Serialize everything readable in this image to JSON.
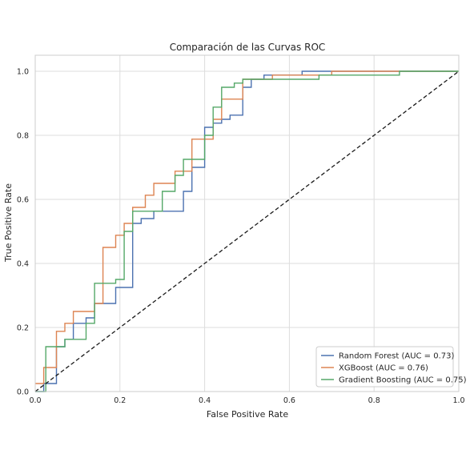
{
  "chart_data": {
    "type": "line",
    "title": "Comparación de las Curvas ROC",
    "xlabel": "False Positive Rate",
    "ylabel": "True Positive Rate",
    "xlim": [
      0.0,
      1.0
    ],
    "ylim": [
      0.0,
      1.05
    ],
    "xticks": [
      0.0,
      0.2,
      0.4,
      0.6,
      0.8,
      1.0
    ],
    "yticks": [
      0.0,
      0.2,
      0.4,
      0.6,
      0.8,
      1.0
    ],
    "xtick_labels": [
      "0.0",
      "0.2",
      "0.4",
      "0.6",
      "0.8",
      "1.0"
    ],
    "ytick_labels": [
      "0.0",
      "0.2",
      "0.4",
      "0.6",
      "0.8",
      "1.0"
    ],
    "grid": true,
    "legend_position": "lower-right",
    "series": [
      {
        "name": "Random Forest (AUC = 0.73)",
        "color": "#4c72b0",
        "x": [
          0,
          0.02,
          0.02,
          0.05,
          0.05,
          0.07,
          0.07,
          0.09,
          0.09,
          0.12,
          0.12,
          0.14,
          0.14,
          0.16,
          0.16,
          0.19,
          0.19,
          0.23,
          0.23,
          0.25,
          0.25,
          0.28,
          0.28,
          0.35,
          0.35,
          0.37,
          0.37,
          0.4,
          0.4,
          0.42,
          0.42,
          0.44,
          0.44,
          0.46,
          0.46,
          0.49,
          0.49,
          0.51,
          0.51,
          0.54,
          0.54,
          0.63,
          0.63,
          1.0
        ],
        "y": [
          0,
          0,
          0.025,
          0.025,
          0.14,
          0.14,
          0.163,
          0.163,
          0.213,
          0.213,
          0.23,
          0.23,
          0.275,
          0.275,
          0.275,
          0.275,
          0.325,
          0.325,
          0.525,
          0.525,
          0.54,
          0.54,
          0.563,
          0.563,
          0.625,
          0.625,
          0.7,
          0.7,
          0.825,
          0.825,
          0.838,
          0.838,
          0.85,
          0.85,
          0.863,
          0.863,
          0.95,
          0.95,
          0.975,
          0.975,
          0.988,
          0.988,
          1.0,
          1.0
        ]
      },
      {
        "name": "XGBoost (AUC = 0.76)",
        "color": "#dd8452",
        "x": [
          0,
          0.02,
          0.02,
          0.05,
          0.05,
          0.07,
          0.07,
          0.09,
          0.09,
          0.14,
          0.14,
          0.16,
          0.16,
          0.19,
          0.19,
          0.21,
          0.21,
          0.23,
          0.23,
          0.26,
          0.26,
          0.28,
          0.28,
          0.33,
          0.33,
          0.37,
          0.37,
          0.4,
          0.4,
          0.42,
          0.42,
          0.44,
          0.44,
          0.49,
          0.49,
          0.56,
          0.56,
          0.7,
          0.7,
          0.86,
          0.86,
          1.0
        ],
        "y": [
          0.025,
          0.025,
          0.075,
          0.075,
          0.188,
          0.188,
          0.213,
          0.213,
          0.25,
          0.25,
          0.275,
          0.275,
          0.45,
          0.45,
          0.488,
          0.488,
          0.525,
          0.525,
          0.575,
          0.575,
          0.613,
          0.613,
          0.65,
          0.65,
          0.688,
          0.688,
          0.788,
          0.788,
          0.788,
          0.788,
          0.85,
          0.85,
          0.913,
          0.913,
          0.975,
          0.975,
          0.988,
          0.988,
          1.0,
          1.0,
          1.0,
          1.0
        ]
      },
      {
        "name": "Gradient Boosting (AUC = 0.75)",
        "color": "#55a868",
        "x": [
          0,
          0.025,
          0.025,
          0.07,
          0.07,
          0.12,
          0.12,
          0.14,
          0.14,
          0.19,
          0.19,
          0.21,
          0.21,
          0.23,
          0.23,
          0.3,
          0.3,
          0.33,
          0.33,
          0.35,
          0.35,
          0.4,
          0.4,
          0.42,
          0.42,
          0.44,
          0.44,
          0.47,
          0.47,
          0.49,
          0.49,
          0.67,
          0.67,
          0.86,
          0.86,
          1.0
        ],
        "y": [
          0,
          0,
          0.14,
          0.14,
          0.163,
          0.163,
          0.213,
          0.213,
          0.338,
          0.338,
          0.35,
          0.35,
          0.5,
          0.5,
          0.563,
          0.563,
          0.625,
          0.625,
          0.675,
          0.675,
          0.725,
          0.725,
          0.8,
          0.8,
          0.888,
          0.888,
          0.95,
          0.95,
          0.963,
          0.963,
          0.975,
          0.975,
          0.988,
          0.988,
          1.0,
          1.0
        ]
      },
      {
        "color": "#1a1a1a",
        "style": "dashed",
        "x": [
          0,
          1
        ],
        "y": [
          0,
          1
        ]
      }
    ]
  }
}
